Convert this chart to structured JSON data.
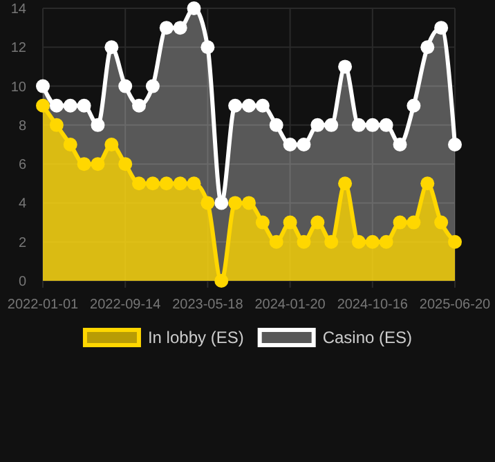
{
  "chart_data": {
    "type": "area",
    "categories": [
      "2022-01-01",
      null,
      null,
      null,
      null,
      null,
      "2022-09-14",
      null,
      null,
      null,
      null,
      null,
      "2023-05-18",
      null,
      null,
      null,
      null,
      null,
      "2024-01-20",
      null,
      null,
      null,
      null,
      null,
      "2024-10-16",
      null,
      null,
      null,
      null,
      null,
      "2025-06-20"
    ],
    "series": [
      {
        "name": "In lobby (ES)",
        "color": "#ffd700",
        "values": [
          9,
          8,
          7,
          6,
          6,
          7,
          6,
          5,
          5,
          5,
          5,
          5,
          4,
          0,
          4,
          4,
          3,
          2,
          3,
          2,
          3,
          2,
          5,
          2,
          2,
          2,
          3,
          3,
          5,
          3,
          2
        ]
      },
      {
        "name": "Casino (ES)",
        "color": "#ffffff",
        "values": [
          10,
          9,
          9,
          9,
          8,
          12,
          10,
          9,
          10,
          13,
          13,
          14,
          12,
          4,
          9,
          9,
          9,
          8,
          7,
          7,
          8,
          8,
          11,
          8,
          8,
          8,
          7,
          9,
          12,
          13,
          7
        ]
      }
    ],
    "ylim": [
      0,
      14
    ],
    "yticks": [
      0,
      2,
      4,
      6,
      8,
      10,
      12,
      14
    ],
    "grid": true,
    "legend": "bottom",
    "marker": "circle"
  }
}
